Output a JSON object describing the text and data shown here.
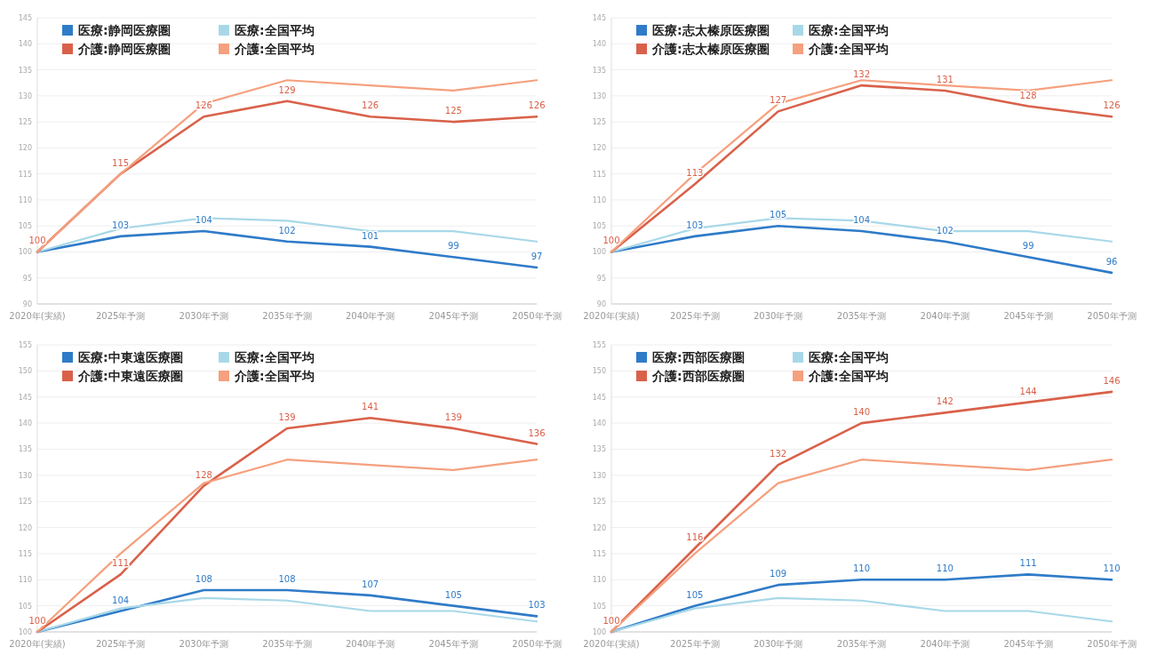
{
  "chart_data": [
    {
      "type": "line",
      "categories": [
        "2020年(実績)",
        "2025年予測",
        "2030年予測",
        "2035年予測",
        "2040年予測",
        "2045年予測",
        "2050年予測"
      ],
      "ylim": [
        90,
        145
      ],
      "yticks": [
        90,
        95,
        100,
        105,
        110,
        115,
        120,
        125,
        130,
        135,
        140,
        145
      ],
      "grid": "y",
      "legend": "top left",
      "series": [
        {
          "name": "医療:静岡医療圏",
          "color": "#2f7bc8",
          "values": [
            100,
            103,
            104,
            102,
            101,
            99,
            97
          ],
          "value_labels": [
            "100",
            "103",
            "104",
            "102",
            "101",
            "99",
            "97"
          ]
        },
        {
          "name": "医療:全国平均",
          "color": "#a8d8e8",
          "values": [
            100,
            104.5,
            106.5,
            106,
            104,
            104,
            102
          ]
        },
        {
          "name": "介護:静岡医療圏",
          "color": "#d9614a",
          "values": [
            100,
            115,
            126,
            129,
            126,
            125,
            126
          ],
          "value_labels": [
            "100",
            "115",
            "126",
            "129",
            "126",
            "125",
            "126"
          ]
        },
        {
          "name": "介護:全国平均",
          "color": "#f5a07e",
          "values": [
            100,
            115,
            128.5,
            133,
            132,
            131,
            133
          ]
        }
      ]
    },
    {
      "type": "line",
      "categories": [
        "2020年(実績)",
        "2025年予測",
        "2030年予測",
        "2035年予測",
        "2040年予測",
        "2045年予測",
        "2050年予測"
      ],
      "ylim": [
        90,
        145
      ],
      "yticks": [
        90,
        95,
        100,
        105,
        110,
        115,
        120,
        125,
        130,
        135,
        140,
        145
      ],
      "grid": "y",
      "legend": "top left",
      "series": [
        {
          "name": "医療:志太榛原医療圏",
          "color": "#2f7bc8",
          "values": [
            100,
            103,
            105,
            104,
            102,
            99,
            96
          ],
          "value_labels": [
            "100",
            "103",
            "105",
            "104",
            "102",
            "99",
            "96"
          ]
        },
        {
          "name": "医療:全国平均",
          "color": "#a8d8e8",
          "values": [
            100,
            104.5,
            106.5,
            106,
            104,
            104,
            102
          ]
        },
        {
          "name": "介護:志太榛原医療圏",
          "color": "#d9614a",
          "values": [
            100,
            113,
            127,
            132,
            131,
            128,
            126
          ],
          "value_labels": [
            "100",
            "113",
            "127",
            "132",
            "131",
            "128",
            "126"
          ]
        },
        {
          "name": "介護:全国平均",
          "color": "#f5a07e",
          "values": [
            100,
            115,
            128.5,
            133,
            132,
            131,
            133
          ]
        }
      ]
    },
    {
      "type": "line",
      "categories": [
        "2020年(実績)",
        "2025年予測",
        "2030年予測",
        "2035年予測",
        "2040年予測",
        "2045年予測",
        "2050年予測"
      ],
      "ylim": [
        100,
        155
      ],
      "yticks": [
        100,
        105,
        110,
        115,
        120,
        125,
        130,
        135,
        140,
        145,
        150,
        155
      ],
      "grid": "y",
      "legend": "top left",
      "series": [
        {
          "name": "医療:中東遠医療圏",
          "color": "#2f7bc8",
          "values": [
            100,
            104,
            108,
            108,
            107,
            105,
            103
          ],
          "value_labels": [
            "100",
            "104",
            "108",
            "108",
            "107",
            "105",
            "103"
          ]
        },
        {
          "name": "医療:全国平均",
          "color": "#a8d8e8",
          "values": [
            100,
            104.5,
            106.5,
            106,
            104,
            104,
            102
          ]
        },
        {
          "name": "介護:中東遠医療圏",
          "color": "#d9614a",
          "values": [
            100,
            111,
            128,
            139,
            141,
            139,
            136
          ],
          "value_labels": [
            "100",
            "111",
            "128",
            "139",
            "141",
            "139",
            "136"
          ]
        },
        {
          "name": "介護:全国平均",
          "color": "#f5a07e",
          "values": [
            100,
            115,
            128.5,
            133,
            132,
            131,
            133
          ]
        }
      ]
    },
    {
      "type": "line",
      "categories": [
        "2020年(実績)",
        "2025年予測",
        "2030年予測",
        "2035年予測",
        "2040年予測",
        "2045年予測",
        "2050年予測"
      ],
      "ylim": [
        100,
        155
      ],
      "yticks": [
        100,
        105,
        110,
        115,
        120,
        125,
        130,
        135,
        140,
        145,
        150,
        155
      ],
      "grid": "y",
      "legend": "top left",
      "series": [
        {
          "name": "医療:西部医療圏",
          "color": "#2f7bc8",
          "values": [
            100,
            105,
            109,
            110,
            110,
            111,
            110
          ],
          "value_labels": [
            "100",
            "105",
            "109",
            "110",
            "110",
            "111",
            "110"
          ]
        },
        {
          "name": "医療:全国平均",
          "color": "#a8d8e8",
          "values": [
            100,
            104.5,
            106.5,
            106,
            104,
            104,
            102
          ]
        },
        {
          "name": "介護:西部医療圏",
          "color": "#d9614a",
          "values": [
            100,
            116,
            132,
            140,
            142,
            144,
            146
          ],
          "value_labels": [
            "100",
            "116",
            "132",
            "140",
            "142",
            "144",
            "146"
          ]
        },
        {
          "name": "介護:全国平均",
          "color": "#f5a07e",
          "values": [
            100,
            115,
            128.5,
            133,
            132,
            131,
            133
          ]
        }
      ]
    }
  ]
}
